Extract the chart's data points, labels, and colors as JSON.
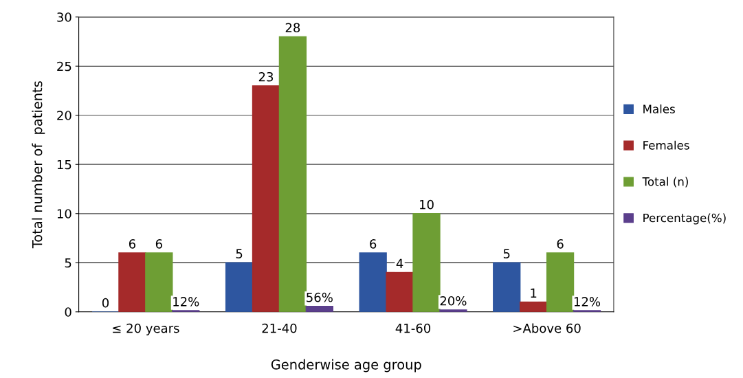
{
  "chart_data": {
    "type": "bar",
    "xlabel": "Genderwise age group",
    "ylabel": "Total number of  patients",
    "categories": [
      "≤ 20 years",
      "21-40",
      "41-60",
      ">Above 60"
    ],
    "series": [
      {
        "name": "Males",
        "color": "#2e56a0",
        "values": [
          0,
          5,
          6,
          5
        ],
        "value_labels": [
          "0",
          "5",
          "6",
          "5"
        ]
      },
      {
        "name": "Females",
        "color": "#a52a2a",
        "values": [
          6,
          23,
          4,
          1
        ],
        "value_labels": [
          "6",
          "23",
          "4",
          "1"
        ]
      },
      {
        "name": "Total (n)",
        "color": "#6e9e34",
        "values": [
          6,
          28,
          10,
          6
        ],
        "value_labels": [
          "6",
          "28",
          "10",
          "6"
        ]
      },
      {
        "name": "Percentage(%)",
        "color": "#5b3f8c",
        "values": [
          0.12,
          0.56,
          0.2,
          0.12
        ],
        "value_labels": [
          "12%",
          "56%",
          "20%",
          "12%"
        ]
      }
    ],
    "ylim": [
      0,
      30
    ],
    "yticks": [
      0,
      5,
      10,
      15,
      20,
      25,
      30
    ],
    "grid": "y",
    "legend": "right"
  }
}
